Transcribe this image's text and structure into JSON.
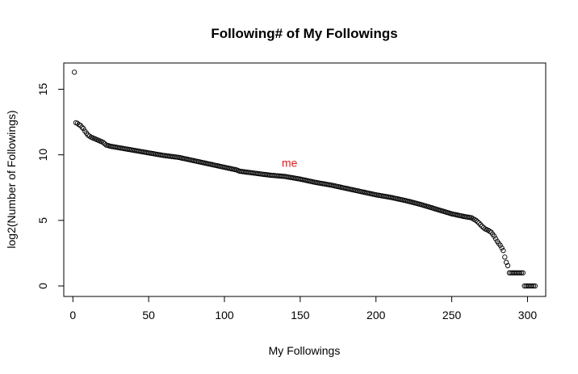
{
  "chart_data": {
    "type": "scatter",
    "title": "Following# of My Followings",
    "xlabel": "My Followings",
    "ylabel": "log2(Number of Followings)",
    "xlim": [
      -6,
      312
    ],
    "ylim": [
      -0.8,
      17
    ],
    "x_ticks": [
      0,
      50,
      100,
      150,
      200,
      250,
      300
    ],
    "y_ticks": [
      0,
      5,
      10,
      15
    ],
    "grid": false,
    "marker": "open-circle",
    "point_color": "#000000",
    "annotation": {
      "text": "me",
      "x": 143,
      "y": 9.1,
      "color": "#e41a1c"
    },
    "n_points": 305,
    "curve": [
      [
        1,
        16.3
      ],
      [
        2,
        12.45
      ],
      [
        3,
        12.4
      ],
      [
        4,
        12.3
      ],
      [
        5,
        12.25
      ],
      [
        6,
        12.1
      ],
      [
        7,
        12.0
      ],
      [
        8,
        11.8
      ],
      [
        9,
        11.65
      ],
      [
        10,
        11.5
      ],
      [
        12,
        11.35
      ],
      [
        14,
        11.25
      ],
      [
        17,
        11.1
      ],
      [
        20,
        10.95
      ],
      [
        22,
        10.75
      ],
      [
        25,
        10.65
      ],
      [
        30,
        10.55
      ],
      [
        40,
        10.35
      ],
      [
        50,
        10.15
      ],
      [
        60,
        9.95
      ],
      [
        70,
        9.8
      ],
      [
        80,
        9.55
      ],
      [
        90,
        9.3
      ],
      [
        100,
        9.05
      ],
      [
        108,
        8.85
      ],
      [
        110,
        8.75
      ],
      [
        120,
        8.6
      ],
      [
        130,
        8.45
      ],
      [
        140,
        8.35
      ],
      [
        150,
        8.15
      ],
      [
        160,
        7.9
      ],
      [
        170,
        7.7
      ],
      [
        180,
        7.45
      ],
      [
        190,
        7.2
      ],
      [
        200,
        6.95
      ],
      [
        210,
        6.75
      ],
      [
        220,
        6.5
      ],
      [
        230,
        6.2
      ],
      [
        240,
        5.85
      ],
      [
        250,
        5.5
      ],
      [
        258,
        5.3
      ],
      [
        263,
        5.2
      ],
      [
        266,
        5.0
      ],
      [
        268,
        4.8
      ],
      [
        270,
        4.55
      ],
      [
        272,
        4.35
      ],
      [
        274,
        4.25
      ],
      [
        276,
        4.1
      ],
      [
        278,
        3.8
      ],
      [
        280,
        3.4
      ],
      [
        282,
        3.1
      ],
      [
        284,
        2.7
      ],
      [
        285,
        2.2
      ],
      [
        286,
        1.8
      ],
      [
        287,
        1.55
      ],
      [
        288,
        1.0
      ],
      [
        297,
        1.0
      ],
      [
        298,
        0.0
      ],
      [
        305,
        0.0
      ]
    ]
  }
}
